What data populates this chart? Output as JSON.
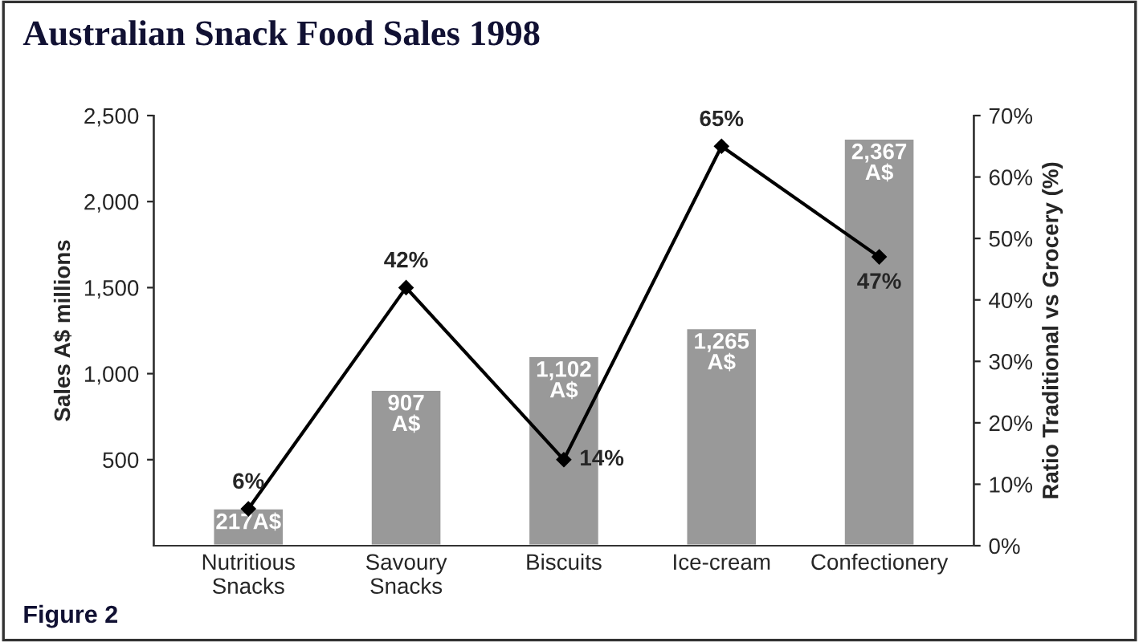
{
  "chart_data": {
    "type": "bar",
    "title": "Australian Snack Food Sales 1998",
    "categories": [
      "Nutritious\nSnacks",
      "Savoury\nSnacks",
      "Biscuits",
      "Ice-cream",
      "Confectionery"
    ],
    "ylabel": "Sales A$ millions",
    "y2label": "Ratio Traditional vs Grocery (%)",
    "series": [
      {
        "color": "#999999",
        "values": [
          217,
          907,
          1102,
          1265,
          2367
        ],
        "value_labels": [
          "217A$",
          "907\nA$",
          "1,102\nA$",
          "1,265\nA$",
          "2,367\nA$"
        ]
      },
      {
        "type": "line",
        "axis": "y2",
        "color": "#000000",
        "marker": "diamond",
        "values": [
          6,
          42,
          14,
          65,
          47
        ],
        "value_labels": [
          "6%",
          "42%",
          "14%",
          "65%",
          "47%"
        ]
      }
    ],
    "ylim": [
      0,
      2500
    ],
    "yticks": [
      {
        "value": 500,
        "label": "500"
      },
      {
        "value": 1000,
        "label": "1,000"
      },
      {
        "value": 1500,
        "label": "1,500"
      },
      {
        "value": 2000,
        "label": "2,000"
      },
      {
        "value": 2500,
        "label": "2,500"
      }
    ],
    "y2lim": [
      0,
      70
    ],
    "y2ticks": [
      {
        "value": 0,
        "label": "0%"
      },
      {
        "value": 10,
        "label": "10%"
      },
      {
        "value": 20,
        "label": "20%"
      },
      {
        "value": 30,
        "label": "30%"
      },
      {
        "value": 40,
        "label": "40%"
      },
      {
        "value": 50,
        "label": "50%"
      },
      {
        "value": 60,
        "label": "60%"
      },
      {
        "value": 70,
        "label": "70%"
      }
    ],
    "grid": false,
    "legend": false,
    "annotations": [
      "Figure 2"
    ]
  }
}
